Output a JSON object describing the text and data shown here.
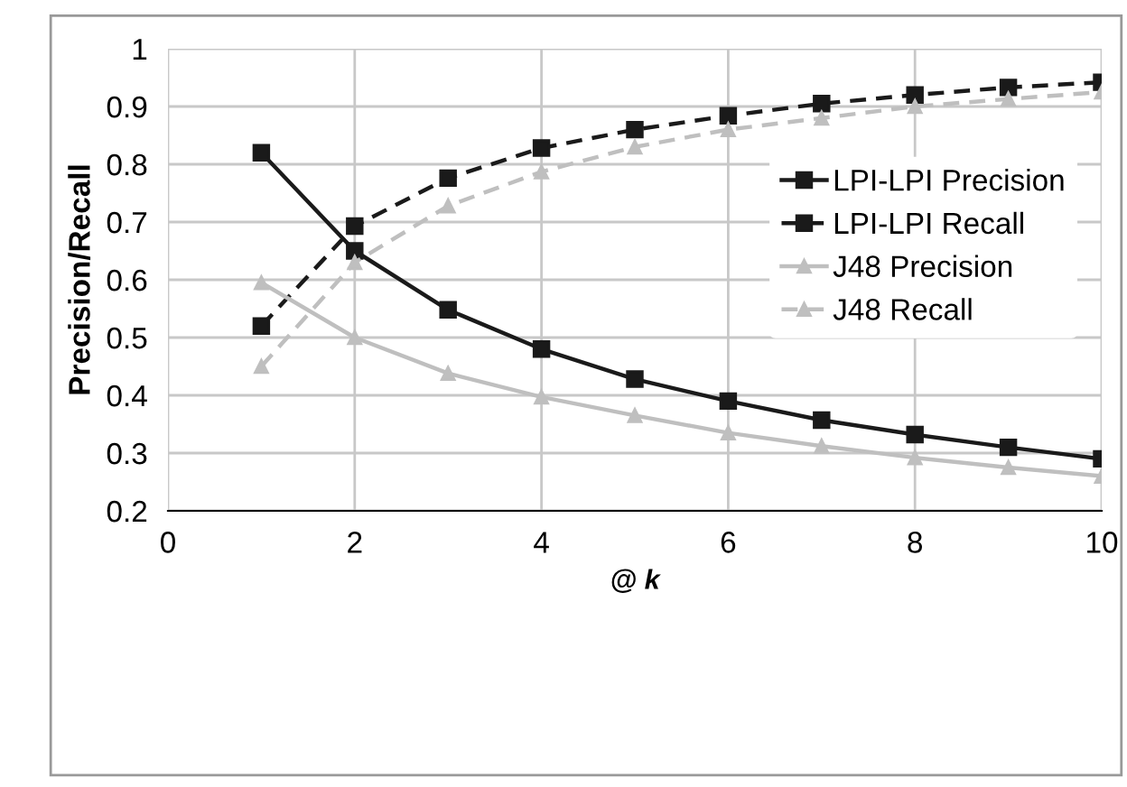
{
  "chart_data": {
    "type": "line",
    "xlabel": "@ k",
    "ylabel": "Precision/Recall",
    "x": [
      1,
      2,
      3,
      4,
      5,
      6,
      7,
      8,
      9,
      10
    ],
    "series": [
      {
        "name": "LPI-LPI Precision",
        "color": "#1a1a1a",
        "marker": "square",
        "line_style": "solid",
        "values": [
          0.82,
          0.65,
          0.548,
          0.48,
          0.428,
          0.39,
          0.357,
          0.332,
          0.31,
          0.29
        ]
      },
      {
        "name": "LPI-LPI Recall",
        "color": "#1a1a1a",
        "marker": "square",
        "line_style": "dashed",
        "values": [
          0.52,
          0.693,
          0.776,
          0.828,
          0.86,
          0.884,
          0.905,
          0.92,
          0.933,
          0.942
        ]
      },
      {
        "name": "J48 Precision",
        "color": "#bfbfbf",
        "marker": "triangle",
        "line_style": "solid",
        "values": [
          0.595,
          0.5,
          0.438,
          0.397,
          0.365,
          0.335,
          0.312,
          0.292,
          0.275,
          0.26
        ]
      },
      {
        "name": "J48 Recall",
        "color": "#bfbfbf",
        "marker": "triangle",
        "line_style": "dashed",
        "values": [
          0.45,
          0.63,
          0.728,
          0.787,
          0.83,
          0.86,
          0.88,
          0.9,
          0.913,
          0.925
        ]
      }
    ],
    "xlim": [
      0,
      10
    ],
    "xticks": [
      0,
      2,
      4,
      6,
      8,
      10
    ],
    "ylim": [
      0.2,
      1
    ],
    "yticks": [
      0.2,
      0.3,
      0.4,
      0.5,
      0.6,
      0.7,
      0.8,
      0.9,
      1
    ],
    "grid": true,
    "legend": "right"
  }
}
